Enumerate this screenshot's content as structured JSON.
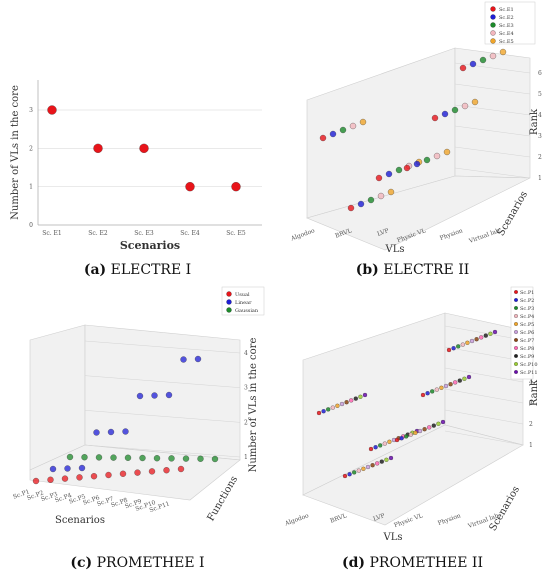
{
  "captions": {
    "a": {
      "letter": "(a)",
      "text": "ELECTRE I"
    },
    "b": {
      "letter": "(b)",
      "text": "ELECTRE II"
    },
    "c": {
      "letter": "(c)",
      "text": "PROMETHEE I"
    },
    "d": {
      "letter": "(d)",
      "text": "PROMETHEE II"
    }
  },
  "colors": {
    "red": "#e8141a",
    "blue": "#1d1dd6",
    "green": "#1c8a2a",
    "pink": "#f2b6bd",
    "orange": "#f0a52a"
  },
  "chart_data": [
    {
      "id": "a",
      "type": "scatter",
      "xlabel": "Scenarios",
      "ylabel": "Number of VLs in the core",
      "categories": [
        "Sc. E1",
        "Sc. E2",
        "Sc. E3",
        "Sc. E4",
        "Sc. E5"
      ],
      "values": [
        3,
        2,
        2,
        1,
        1
      ],
      "ylim": [
        0,
        3
      ],
      "yticks": [
        0,
        1,
        2,
        3
      ],
      "grid": true,
      "color": "#e8141a"
    },
    {
      "id": "b",
      "type": "scatter",
      "projection": "3d",
      "xlabel": "VLs",
      "ylabel": "Scenarios",
      "zlabel": "Rank",
      "x_categories": [
        "Algodoo",
        "BRVL",
        "LVP",
        "Physic VL",
        "Physion",
        "Virtual lab"
      ],
      "zticks": [
        1,
        2,
        3,
        4,
        5,
        6
      ],
      "legend": {
        "placement": "top-right",
        "entries": [
          "Sc.E1",
          "Sc.E2",
          "Sc.E3",
          "Sc.E4",
          "Sc.E5"
        ]
      },
      "series": [
        {
          "name": "Sc.E1",
          "color": "#e8141a",
          "ranks": [
            5,
            1,
            2,
            2,
            4,
            6
          ]
        },
        {
          "name": "Sc.E2",
          "color": "#1d1dd6",
          "ranks": [
            5,
            1,
            2,
            2,
            4,
            6
          ]
        },
        {
          "name": "Sc.E3",
          "color": "#1c8a2a",
          "ranks": [
            5,
            1,
            2,
            2,
            4,
            6
          ]
        },
        {
          "name": "Sc.E4",
          "color": "#f2b6bd",
          "ranks": [
            5,
            1,
            2,
            2,
            4,
            6
          ]
        },
        {
          "name": "Sc.E5",
          "color": "#f0a52a",
          "ranks": [
            5,
            1,
            2,
            2,
            4,
            6
          ]
        }
      ]
    },
    {
      "id": "c",
      "type": "scatter",
      "projection": "3d",
      "xlabel": "Scenarios",
      "ylabel": "Functions",
      "zlabel": "Number of VLs in the core",
      "x_categories": [
        "Sc.P1",
        "Sc.P2",
        "Sc.P3",
        "Sc.P4",
        "Sc.P5",
        "Sc.P6",
        "Sc.P7",
        "Sc.P8",
        "Sc.P9",
        "Sc.P10",
        "Sc.P11"
      ],
      "zticks": [
        1,
        2,
        3,
        4
      ],
      "legend": {
        "placement": "top-right",
        "entries": [
          "Usual",
          "Linear",
          "Gaussian"
        ]
      },
      "series": [
        {
          "name": "Usual",
          "color": "#e8141a",
          "values": [
            1,
            1,
            1,
            1,
            1,
            1,
            1,
            1,
            1,
            1,
            1
          ]
        },
        {
          "name": "Linear",
          "color": "#1d1dd6",
          "values": [
            1,
            1,
            1,
            2,
            2,
            2,
            3,
            3,
            3,
            4,
            4
          ]
        },
        {
          "name": "Gaussian",
          "color": "#1c8a2a",
          "values": [
            1,
            1,
            1,
            1,
            1,
            1,
            1,
            1,
            1,
            1,
            1
          ]
        }
      ]
    },
    {
      "id": "d",
      "type": "scatter",
      "projection": "3d",
      "xlabel": "VLs",
      "ylabel": "Scenarios",
      "zlabel": "Rank",
      "x_categories": [
        "Algodoo",
        "BRVL",
        "LVP",
        "Physic VL",
        "Physion",
        "Virtual lab"
      ],
      "zticks": [
        1,
        2,
        3,
        4,
        5,
        6
      ],
      "legend": {
        "placement": "top-right",
        "entries": [
          "Sc.P1",
          "Sc.P2",
          "Sc.P3",
          "Sc.P4",
          "Sc.P5",
          "Sc.P6",
          "Sc.P7",
          "Sc.P8",
          "Sc.P9",
          "Sc.P10",
          "Sc.P11"
        ]
      },
      "series_colors": [
        "#e8141a",
        "#1d1dd6",
        "#1c8a2a",
        "#f2b6bd",
        "#f0a52a",
        "#c9a0dc",
        "#8b4513",
        "#ff69b4",
        "#222222",
        "#9acd32",
        "#6a0dad"
      ],
      "ranks_by_vl": [
        5,
        1,
        2,
        2,
        4,
        6
      ]
    }
  ]
}
